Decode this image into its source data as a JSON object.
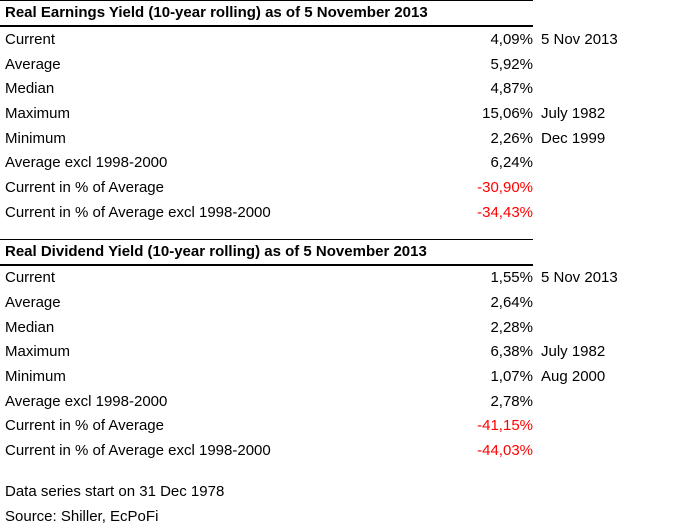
{
  "colors": {
    "text": "#000000",
    "negative_value": "#ff0000",
    "rule": "#000000",
    "background": "#ffffff"
  },
  "tables": [
    {
      "title": "Real Earnings Yield (10-year rolling) as of 5 November 2013",
      "rows": [
        {
          "label": "Current",
          "value": "4,09%",
          "date": "5 Nov 2013",
          "negative": false
        },
        {
          "label": "Average",
          "value": "5,92%",
          "date": "",
          "negative": false
        },
        {
          "label": "Median",
          "value": "4,87%",
          "date": "",
          "negative": false
        },
        {
          "label": "Maximum",
          "value": "15,06%",
          "date": "July 1982",
          "negative": false
        },
        {
          "label": "Minimum",
          "value": "2,26%",
          "date": "Dec 1999",
          "negative": false
        },
        {
          "label": "Average excl 1998-2000",
          "value": "6,24%",
          "date": "",
          "negative": false
        },
        {
          "label": "Current in % of Average",
          "value": "-30,90%",
          "date": "",
          "negative": true
        },
        {
          "label": "Current in % of Average excl 1998-2000",
          "value": "-34,43%",
          "date": "",
          "negative": true
        }
      ]
    },
    {
      "title": "Real Dividend Yield (10-year rolling) as of 5 November 2013",
      "rows": [
        {
          "label": "Current",
          "value": "1,55%",
          "date": "5 Nov 2013",
          "negative": false
        },
        {
          "label": "Average",
          "value": "2,64%",
          "date": "",
          "negative": false
        },
        {
          "label": "Median",
          "value": "2,28%",
          "date": "",
          "negative": false
        },
        {
          "label": "Maximum",
          "value": "6,38%",
          "date": "July 1982",
          "negative": false
        },
        {
          "label": "Minimum",
          "value": "1,07%",
          "date": "Aug 2000",
          "negative": false
        },
        {
          "label": "Average excl 1998-2000",
          "value": "2,78%",
          "date": "",
          "negative": false
        },
        {
          "label": "Current in % of Average",
          "value": "-41,15%",
          "date": "",
          "negative": true
        },
        {
          "label": "Current in % of Average excl 1998-2000",
          "value": "-44,03%",
          "date": "",
          "negative": true
        }
      ]
    }
  ],
  "footer": {
    "line1": "Data series start on 31 Dec 1978",
    "line2": "Source: Shiller, EcPoFi"
  }
}
